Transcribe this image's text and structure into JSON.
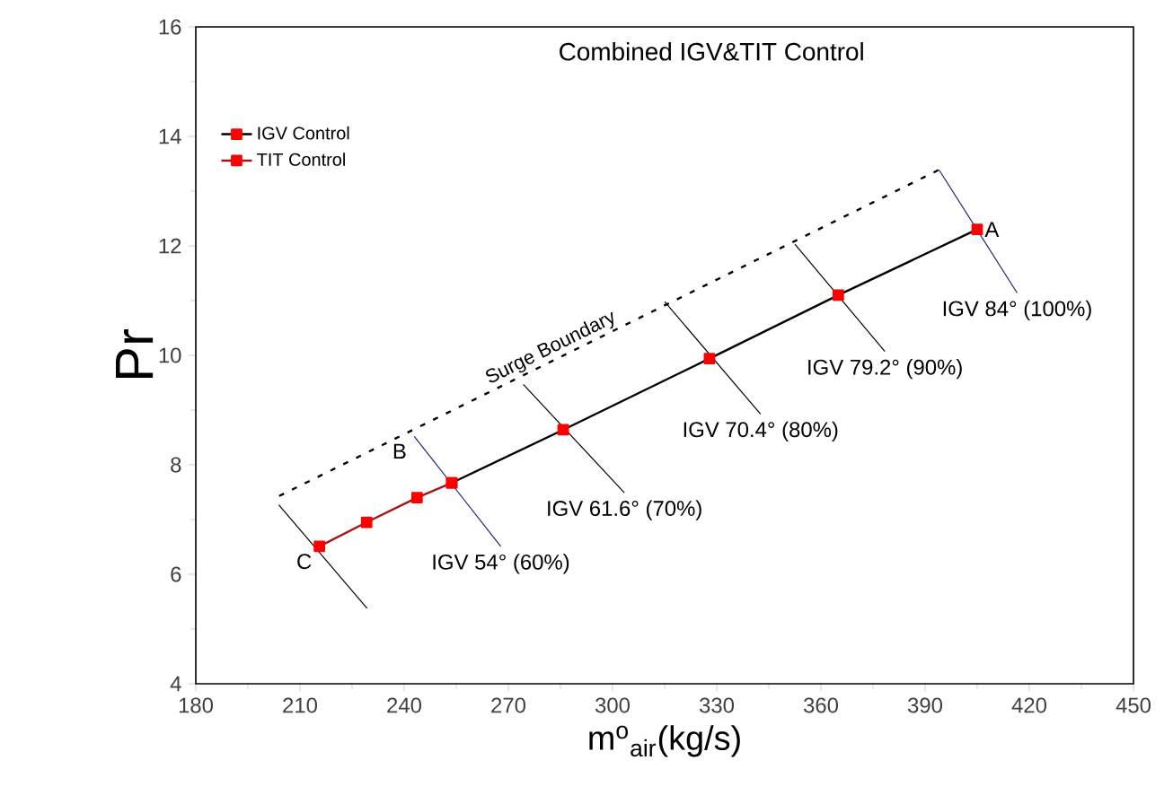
{
  "chart_data": {
    "type": "line",
    "title": "Combined IGV&TIT Control",
    "xlabel": "m$^{o}$$_{air}$(kg/s)",
    "ylabel": "Pr",
    "xlim": [
      180,
      450
    ],
    "xticks": [
      180,
      210,
      240,
      270,
      300,
      330,
      360,
      390,
      420,
      450
    ],
    "ylim": [
      4,
      16
    ],
    "yticks": [
      4,
      6,
      8,
      10,
      12,
      14,
      16
    ],
    "legend": "top left",
    "marker": "square",
    "line_style": "solid",
    "grid": false,
    "series": [
      {
        "name": "IGV Control",
        "color": "#000000",
        "x": [
          253.7,
          285.8,
          327.9,
          365,
          405
        ],
        "values": [
          7.67,
          8.64,
          9.94,
          11.1,
          12.3
        ]
      },
      {
        "name": "TIT Control",
        "color": "#a01818",
        "x": [
          215.6,
          229.2,
          243.7,
          253.7
        ],
        "values": [
          6.51,
          6.95,
          7.4,
          7.67
        ]
      },
      {
        "name": "Surge Boundary",
        "color": "#000000",
        "line_style": "dotted",
        "marker": "none",
        "x": [
          204,
          394
        ],
        "values": [
          7.43,
          13.39
        ]
      },
      {
        "color": "#000000",
        "marker": "none",
        "x": [
          203.9,
          229.3
        ],
        "values": [
          7.27,
          5.38
        ]
      },
      {
        "color": "#1a237e",
        "marker": "none",
        "x": [
          242.9,
          267.8
        ],
        "values": [
          8.52,
          6.51
        ]
      },
      {
        "color": "#000000",
        "marker": "none",
        "x": [
          274.3,
          303.4
        ],
        "values": [
          9.47,
          7.49
        ]
      },
      {
        "color": "#000000",
        "marker": "none",
        "x": [
          315,
          342.6
        ],
        "values": [
          10.98,
          8.93
        ]
      },
      {
        "color": "#000000",
        "marker": "none",
        "x": [
          352.5,
          378.4
        ],
        "values": [
          12.03,
          10.07
        ]
      },
      {
        "color": "#1a237e",
        "marker": "none",
        "x": [
          394,
          416.5
        ],
        "values": [
          13.39,
          11.14
        ]
      }
    ],
    "annotations": [
      {
        "text": "A",
        "x": 405,
        "y": 12.3
      },
      {
        "text": "B",
        "x": 242.9,
        "y": 8.52
      },
      {
        "text": "C",
        "x": 215.6,
        "y": 6.51
      },
      {
        "text": "IGV 54° (60%)",
        "x": 267.8,
        "y": 6.51
      },
      {
        "text": "IGV 61.6° (70%)",
        "x": 303.4,
        "y": 7.49
      },
      {
        "text": "IGV 70.4° (80%)",
        "x": 342.6,
        "y": 8.93
      },
      {
        "text": "IGV 79.2° (90%)",
        "x": 378.4,
        "y": 10.07
      },
      {
        "text": "IGV 84° (100%)",
        "x": 416.5,
        "y": 11.14
      }
    ]
  }
}
